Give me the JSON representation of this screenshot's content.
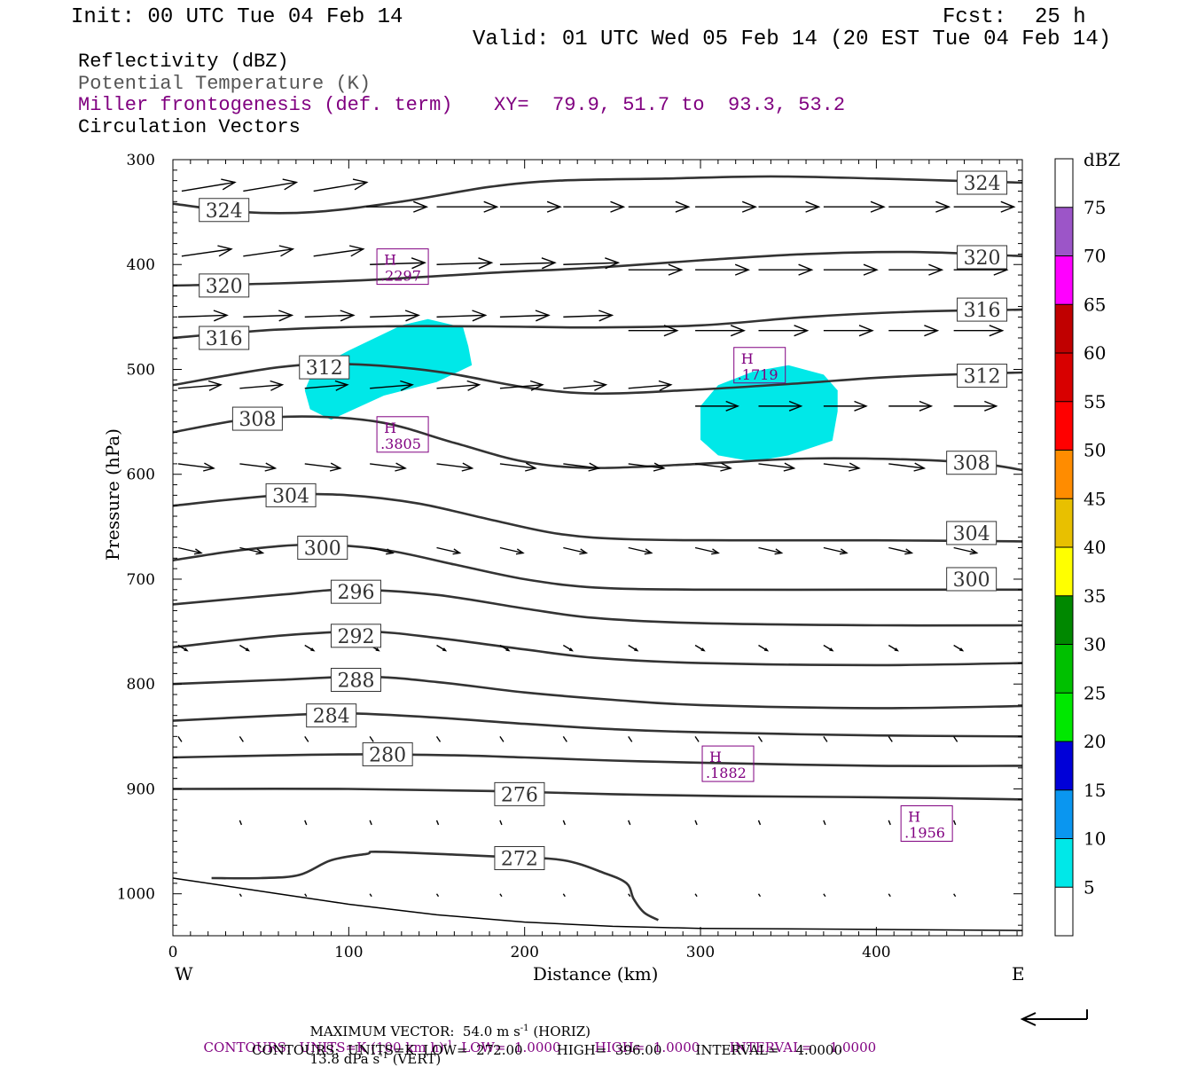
{
  "header": {
    "init": "Init: 00 UTC Tue 04 Feb 14",
    "fcst_label": "Fcst:",
    "fcst_value": "25 h",
    "valid": "Valid: 01 UTC Wed 05 Feb 14 (20 EST Tue 04 Feb 14)"
  },
  "legend": {
    "reflectivity": "Reflectivity (dBZ)",
    "theta": "Potential Temperature (K)",
    "frontogenesis": "Miller frontogenesis (def. term)",
    "xy": "XY=  79.9, 51.7 to  93.3, 53.2",
    "vectors": "Circulation Vectors"
  },
  "footer": {
    "max_vector": "MAXIMUM VECTOR:  54.0 m s",
    "max_vector_horiz": "(HORIZ)",
    "max_vector_vert": "13.8 dPa s",
    "max_vector_vert_suffix": "(VERT)",
    "sup_minus1": "-1",
    "contours_fronto_pre": "CONTOURS:  UNITS=K (100 km h)",
    "contours_fronto_post": "LOW=  1.0000        HIGH=  1.0000       INTERVAL=    1.0000",
    "contours_theta": "CONTOURS:  UNITS=K  LOW=  272.00        HIGH=  396.00        INTERVAL=    4.0000"
  },
  "colors": {
    "contour": "#333333",
    "reflectivity_fill": "#00e8e8",
    "fronto_label": "#800080"
  },
  "chart_data": {
    "type": "contour-cross-section",
    "xlabel": "Distance (km)",
    "ylabel": "Pressure (hPa)",
    "xlim": [
      0,
      483
    ],
    "ylim": [
      1040,
      300
    ],
    "x_ticks": [
      0,
      100,
      200,
      300,
      400
    ],
    "y_ticks": [
      300,
      400,
      500,
      600,
      700,
      800,
      900,
      1000
    ],
    "x_end_labels": {
      "left": "W",
      "right": "E"
    },
    "colorbar": {
      "title": "dBZ",
      "levels": [
        5,
        10,
        15,
        20,
        25,
        30,
        35,
        40,
        45,
        50,
        55,
        60,
        65,
        70,
        75
      ],
      "colors": [
        "#ffffff",
        "#00e8e8",
        "#0a96f0",
        "#0000d8",
        "#00e800",
        "#00c000",
        "#008800",
        "#ffff00",
        "#e8c000",
        "#ff8c00",
        "#ff0000",
        "#d80000",
        "#c00000",
        "#ff00ff",
        "#9c55c8",
        "#ffffff"
      ]
    },
    "theta_contours": [
      {
        "value": "324",
        "points": [
          [
            0,
            342
          ],
          [
            40,
            350
          ],
          [
            80,
            350
          ],
          [
            130,
            340
          ],
          [
            180,
            326
          ],
          [
            220,
            320
          ],
          [
            280,
            318
          ],
          [
            340,
            316
          ],
          [
            400,
            318
          ],
          [
            483,
            322
          ]
        ]
      },
      {
        "value": "320",
        "points": [
          [
            0,
            420
          ],
          [
            60,
            418
          ],
          [
            120,
            414
          ],
          [
            180,
            408
          ],
          [
            240,
            403
          ],
          [
            300,
            396
          ],
          [
            360,
            390
          ],
          [
            420,
            388
          ],
          [
            483,
            392
          ]
        ]
      },
      {
        "value": "316",
        "points": [
          [
            0,
            470
          ],
          [
            60,
            462
          ],
          [
            120,
            459
          ],
          [
            180,
            459
          ],
          [
            240,
            460
          ],
          [
            300,
            458
          ],
          [
            360,
            450
          ],
          [
            420,
            445
          ],
          [
            483,
            443
          ]
        ]
      },
      {
        "value": "312",
        "points": [
          [
            0,
            515
          ],
          [
            60,
            498
          ],
          [
            100,
            495
          ],
          [
            150,
            502
          ],
          [
            200,
            517
          ],
          [
            240,
            523
          ],
          [
            290,
            520
          ],
          [
            350,
            514
          ],
          [
            400,
            508
          ],
          [
            440,
            505
          ],
          [
            483,
            503
          ]
        ]
      },
      {
        "value": "308",
        "points": [
          [
            0,
            560
          ],
          [
            40,
            548
          ],
          [
            80,
            545
          ],
          [
            120,
            551
          ],
          [
            160,
            570
          ],
          [
            200,
            588
          ],
          [
            240,
            594
          ],
          [
            300,
            590
          ],
          [
            360,
            585
          ],
          [
            420,
            586
          ],
          [
            460,
            590
          ],
          [
            483,
            596
          ]
        ]
      },
      {
        "value": "304",
        "points": [
          [
            0,
            630
          ],
          [
            60,
            620
          ],
          [
            100,
            620
          ],
          [
            140,
            628
          ],
          [
            180,
            643
          ],
          [
            220,
            657
          ],
          [
            260,
            662
          ],
          [
            320,
            663
          ],
          [
            400,
            663
          ],
          [
            483,
            664
          ]
        ]
      },
      {
        "value": "300",
        "points": [
          [
            0,
            682
          ],
          [
            40,
            672
          ],
          [
            80,
            667
          ],
          [
            120,
            672
          ],
          [
            160,
            686
          ],
          [
            200,
            700
          ],
          [
            240,
            708
          ],
          [
            300,
            710
          ],
          [
            400,
            710
          ],
          [
            483,
            710
          ]
        ]
      },
      {
        "value": "296",
        "points": [
          [
            0,
            724
          ],
          [
            60,
            715
          ],
          [
            100,
            710
          ],
          [
            150,
            715
          ],
          [
            200,
            728
          ],
          [
            240,
            737
          ],
          [
            300,
            742
          ],
          [
            400,
            744
          ],
          [
            483,
            744
          ]
        ]
      },
      {
        "value": "292",
        "points": [
          [
            0,
            765
          ],
          [
            60,
            754
          ],
          [
            110,
            750
          ],
          [
            150,
            756
          ],
          [
            200,
            767
          ],
          [
            240,
            775
          ],
          [
            300,
            780
          ],
          [
            400,
            782
          ],
          [
            483,
            780
          ]
        ]
      },
      {
        "value": "288",
        "points": [
          [
            0,
            800
          ],
          [
            60,
            796
          ],
          [
            110,
            793
          ],
          [
            150,
            798
          ],
          [
            200,
            808
          ],
          [
            250,
            815
          ],
          [
            300,
            820
          ],
          [
            400,
            823
          ],
          [
            483,
            821
          ]
        ]
      },
      {
        "value": "284",
        "points": [
          [
            0,
            835
          ],
          [
            60,
            830
          ],
          [
            100,
            828
          ],
          [
            150,
            832
          ],
          [
            200,
            838
          ],
          [
            250,
            843
          ],
          [
            300,
            846
          ],
          [
            400,
            849
          ],
          [
            483,
            850
          ]
        ]
      },
      {
        "value": "280",
        "points": [
          [
            0,
            870
          ],
          [
            60,
            868
          ],
          [
            110,
            867
          ],
          [
            160,
            868
          ],
          [
            200,
            870
          ],
          [
            250,
            873
          ],
          [
            300,
            875
          ],
          [
            400,
            878
          ],
          [
            483,
            878
          ]
        ]
      },
      {
        "value": "276",
        "points": [
          [
            0,
            900
          ],
          [
            100,
            900
          ],
          [
            180,
            902
          ],
          [
            250,
            905
          ],
          [
            320,
            907
          ],
          [
            400,
            908
          ],
          [
            483,
            910
          ]
        ]
      },
      {
        "value": "272",
        "points": [
          [
            22,
            985
          ],
          [
            50,
            985
          ],
          [
            72,
            982
          ],
          [
            90,
            968
          ],
          [
            110,
            962
          ],
          [
            120,
            960
          ],
          [
            190,
            965
          ],
          [
            222,
            968
          ],
          [
            245,
            980
          ],
          [
            258,
            990
          ],
          [
            262,
            1005
          ],
          [
            268,
            1018
          ],
          [
            276,
            1025
          ]
        ]
      }
    ],
    "theta_labels": [
      {
        "text": "324",
        "x": 18,
        "p": 348
      },
      {
        "text": "324",
        "x": 449,
        "p": 322
      },
      {
        "text": "320",
        "x": 18,
        "p": 420
      },
      {
        "text": "320",
        "x": 449,
        "p": 393
      },
      {
        "text": "316",
        "x": 18,
        "p": 470
      },
      {
        "text": "316",
        "x": 449,
        "p": 443
      },
      {
        "text": "312",
        "x": 75,
        "p": 498
      },
      {
        "text": "312",
        "x": 449,
        "p": 506
      },
      {
        "text": "308",
        "x": 37,
        "p": 547
      },
      {
        "text": "308",
        "x": 443,
        "p": 589
      },
      {
        "text": "304",
        "x": 56,
        "p": 620
      },
      {
        "text": "304",
        "x": 443,
        "p": 656
      },
      {
        "text": "300",
        "x": 74,
        "p": 670
      },
      {
        "text": "300",
        "x": 443,
        "p": 700
      },
      {
        "text": "296",
        "x": 93,
        "p": 712
      },
      {
        "text": "292",
        "x": 93,
        "p": 754
      },
      {
        "text": "288",
        "x": 93,
        "p": 796
      },
      {
        "text": "284",
        "x": 79,
        "p": 830
      },
      {
        "text": "280",
        "x": 111,
        "p": 867
      },
      {
        "text": "276",
        "x": 186,
        "p": 905
      },
      {
        "text": "272",
        "x": 186,
        "p": 966
      }
    ],
    "reflectivity_areas": [
      {
        "dbz": 5,
        "points": [
          [
            75,
            520
          ],
          [
            80,
            500
          ],
          [
            100,
            482
          ],
          [
            130,
            458
          ],
          [
            145,
            452
          ],
          [
            165,
            460
          ],
          [
            168,
            478
          ],
          [
            170,
            496
          ],
          [
            150,
            512
          ],
          [
            120,
            525
          ],
          [
            90,
            548
          ],
          [
            78,
            538
          ]
        ]
      },
      {
        "dbz": 5,
        "points": [
          [
            300,
            535
          ],
          [
            310,
            515
          ],
          [
            330,
            502
          ],
          [
            350,
            496
          ],
          [
            370,
            505
          ],
          [
            378,
            520
          ],
          [
            378,
            540
          ],
          [
            375,
            568
          ],
          [
            350,
            582
          ],
          [
            330,
            588
          ],
          [
            310,
            582
          ],
          [
            300,
            567
          ]
        ]
      }
    ],
    "fronto_maxima": [
      {
        "label": "H",
        "value": ".2297",
        "x": 116,
        "p": 402
      },
      {
        "label": "H",
        "value": ".1719",
        "x": 319,
        "p": 496
      },
      {
        "label": "H",
        "value": ".3805",
        "x": 116,
        "p": 562
      },
      {
        "label": "H",
        "value": ".1882",
        "x": 301,
        "p": 876
      },
      {
        "label": "H",
        "value": ".1956",
        "x": 414,
        "p": 933
      }
    ],
    "vector_rows": [
      {
        "p": 330,
        "dx": 60,
        "dy": -10,
        "xs": [
          5,
          40,
          80
        ]
      },
      {
        "p": 345,
        "dx": 68,
        "dy": 0,
        "xs": [
          110,
          150,
          186,
          222,
          259,
          297,
          333,
          370,
          407,
          444
        ]
      },
      {
        "p": 392,
        "dx": 56,
        "dy": -8,
        "xs": [
          5,
          40,
          80
        ]
      },
      {
        "p": 400,
        "dx": 62,
        "dy": -2,
        "xs": [
          112,
          150,
          186,
          222
        ]
      },
      {
        "p": 405,
        "dx": 60,
        "dy": 0,
        "xs": [
          259,
          297,
          333,
          370,
          407,
          444
        ]
      },
      {
        "p": 450,
        "dx": 55,
        "dy": -2,
        "xs": [
          3,
          40,
          75,
          112,
          150,
          186,
          222
        ]
      },
      {
        "p": 463,
        "dx": 55,
        "dy": 0,
        "xs": [
          259,
          297,
          333,
          370,
          407,
          444
        ]
      },
      {
        "p": 518,
        "dx": 48,
        "dy": -4,
        "xs": [
          3,
          38,
          75,
          112,
          150,
          186,
          222,
          259
        ]
      },
      {
        "p": 535,
        "dx": 48,
        "dy": 0,
        "xs": [
          297,
          333,
          370,
          407,
          444
        ]
      },
      {
        "p": 590,
        "dx": 40,
        "dy": 5,
        "xs": [
          3,
          38,
          75,
          112,
          150,
          186,
          222,
          259,
          297,
          333,
          370,
          407,
          444
        ]
      },
      {
        "p": 670,
        "dx": 26,
        "dy": 6,
        "xs": [
          3,
          38,
          75,
          112,
          150,
          186,
          222,
          259,
          297,
          333,
          370,
          407,
          444
        ]
      },
      {
        "p": 763,
        "dx": 10,
        "dy": 6,
        "xs": [
          3,
          38,
          75,
          112,
          150,
          186,
          222,
          259,
          297,
          333,
          370,
          407,
          444
        ]
      },
      {
        "p": 850,
        "dx": 4,
        "dy": 6,
        "xs": [
          3,
          38,
          75,
          112,
          150,
          186,
          222,
          259,
          297,
          333,
          370,
          407,
          444
        ]
      },
      {
        "p": 930,
        "dx": 2,
        "dy": 5,
        "xs": [
          38,
          75,
          112,
          150,
          186,
          222,
          259,
          297,
          333,
          370,
          407,
          444
        ]
      },
      {
        "p": 1000,
        "dx": 2,
        "dy": 3,
        "xs": [
          38,
          75,
          112,
          150,
          186,
          222,
          259,
          297,
          333,
          370,
          407,
          444
        ]
      }
    ],
    "terrain": [
      [
        0,
        985
      ],
      [
        60,
        1000
      ],
      [
        100,
        1010
      ],
      [
        150,
        1020
      ],
      [
        200,
        1027
      ],
      [
        250,
        1031
      ],
      [
        300,
        1033
      ],
      [
        400,
        1034
      ],
      [
        483,
        1035
      ]
    ]
  }
}
